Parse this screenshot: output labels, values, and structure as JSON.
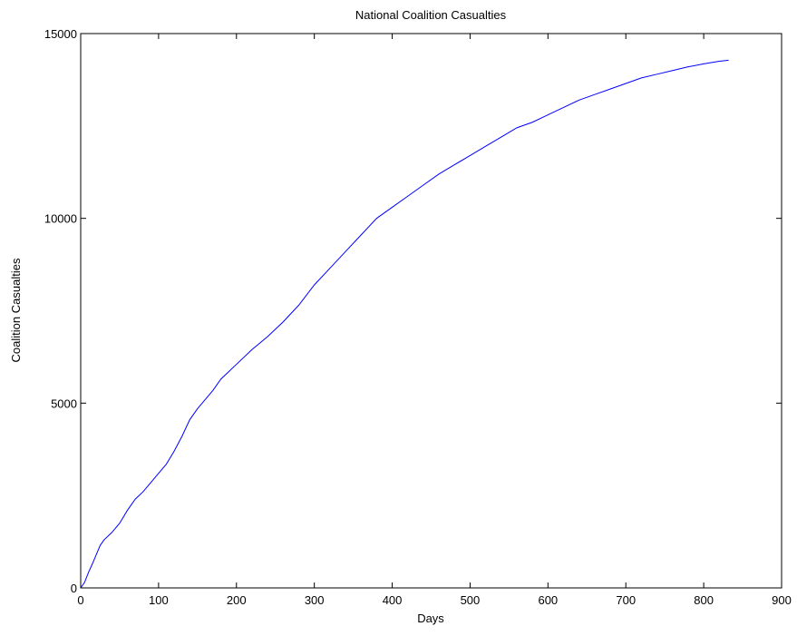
{
  "chart_data": {
    "type": "line",
    "title": "National Coalition Casualties",
    "xlabel": "Days",
    "ylabel": "Coalition Casualties",
    "xlim": [
      0,
      900
    ],
    "ylim": [
      0,
      15000
    ],
    "xticks": [
      0,
      100,
      200,
      300,
      400,
      500,
      600,
      700,
      800,
      900
    ],
    "yticks": [
      0,
      5000,
      10000,
      15000
    ],
    "grid": false,
    "colors": {
      "line": "#0000ff",
      "axes": "#000000",
      "background": "#ffffff"
    },
    "series": [
      {
        "x": [
          0,
          5,
          10,
          15,
          20,
          25,
          30,
          40,
          50,
          60,
          70,
          80,
          90,
          100,
          110,
          120,
          130,
          140,
          150,
          160,
          170,
          180,
          190,
          200,
          220,
          240,
          260,
          280,
          300,
          320,
          340,
          360,
          380,
          400,
          420,
          440,
          460,
          480,
          500,
          520,
          540,
          560,
          580,
          600,
          620,
          640,
          660,
          680,
          700,
          720,
          740,
          760,
          780,
          800,
          820,
          832
        ],
        "y": [
          0,
          150,
          420,
          650,
          900,
          1150,
          1300,
          1500,
          1750,
          2100,
          2400,
          2600,
          2850,
          3100,
          3350,
          3700,
          4100,
          4550,
          4850,
          5100,
          5350,
          5650,
          5850,
          6050,
          6450,
          6800,
          7200,
          7650,
          8200,
          8650,
          9100,
          9550,
          10000,
          10300,
          10600,
          10900,
          11200,
          11450,
          11700,
          11950,
          12200,
          12450,
          12600,
          12800,
          13000,
          13200,
          13350,
          13500,
          13650,
          13800,
          13900,
          14000,
          14100,
          14180,
          14250,
          14280
        ]
      }
    ]
  }
}
